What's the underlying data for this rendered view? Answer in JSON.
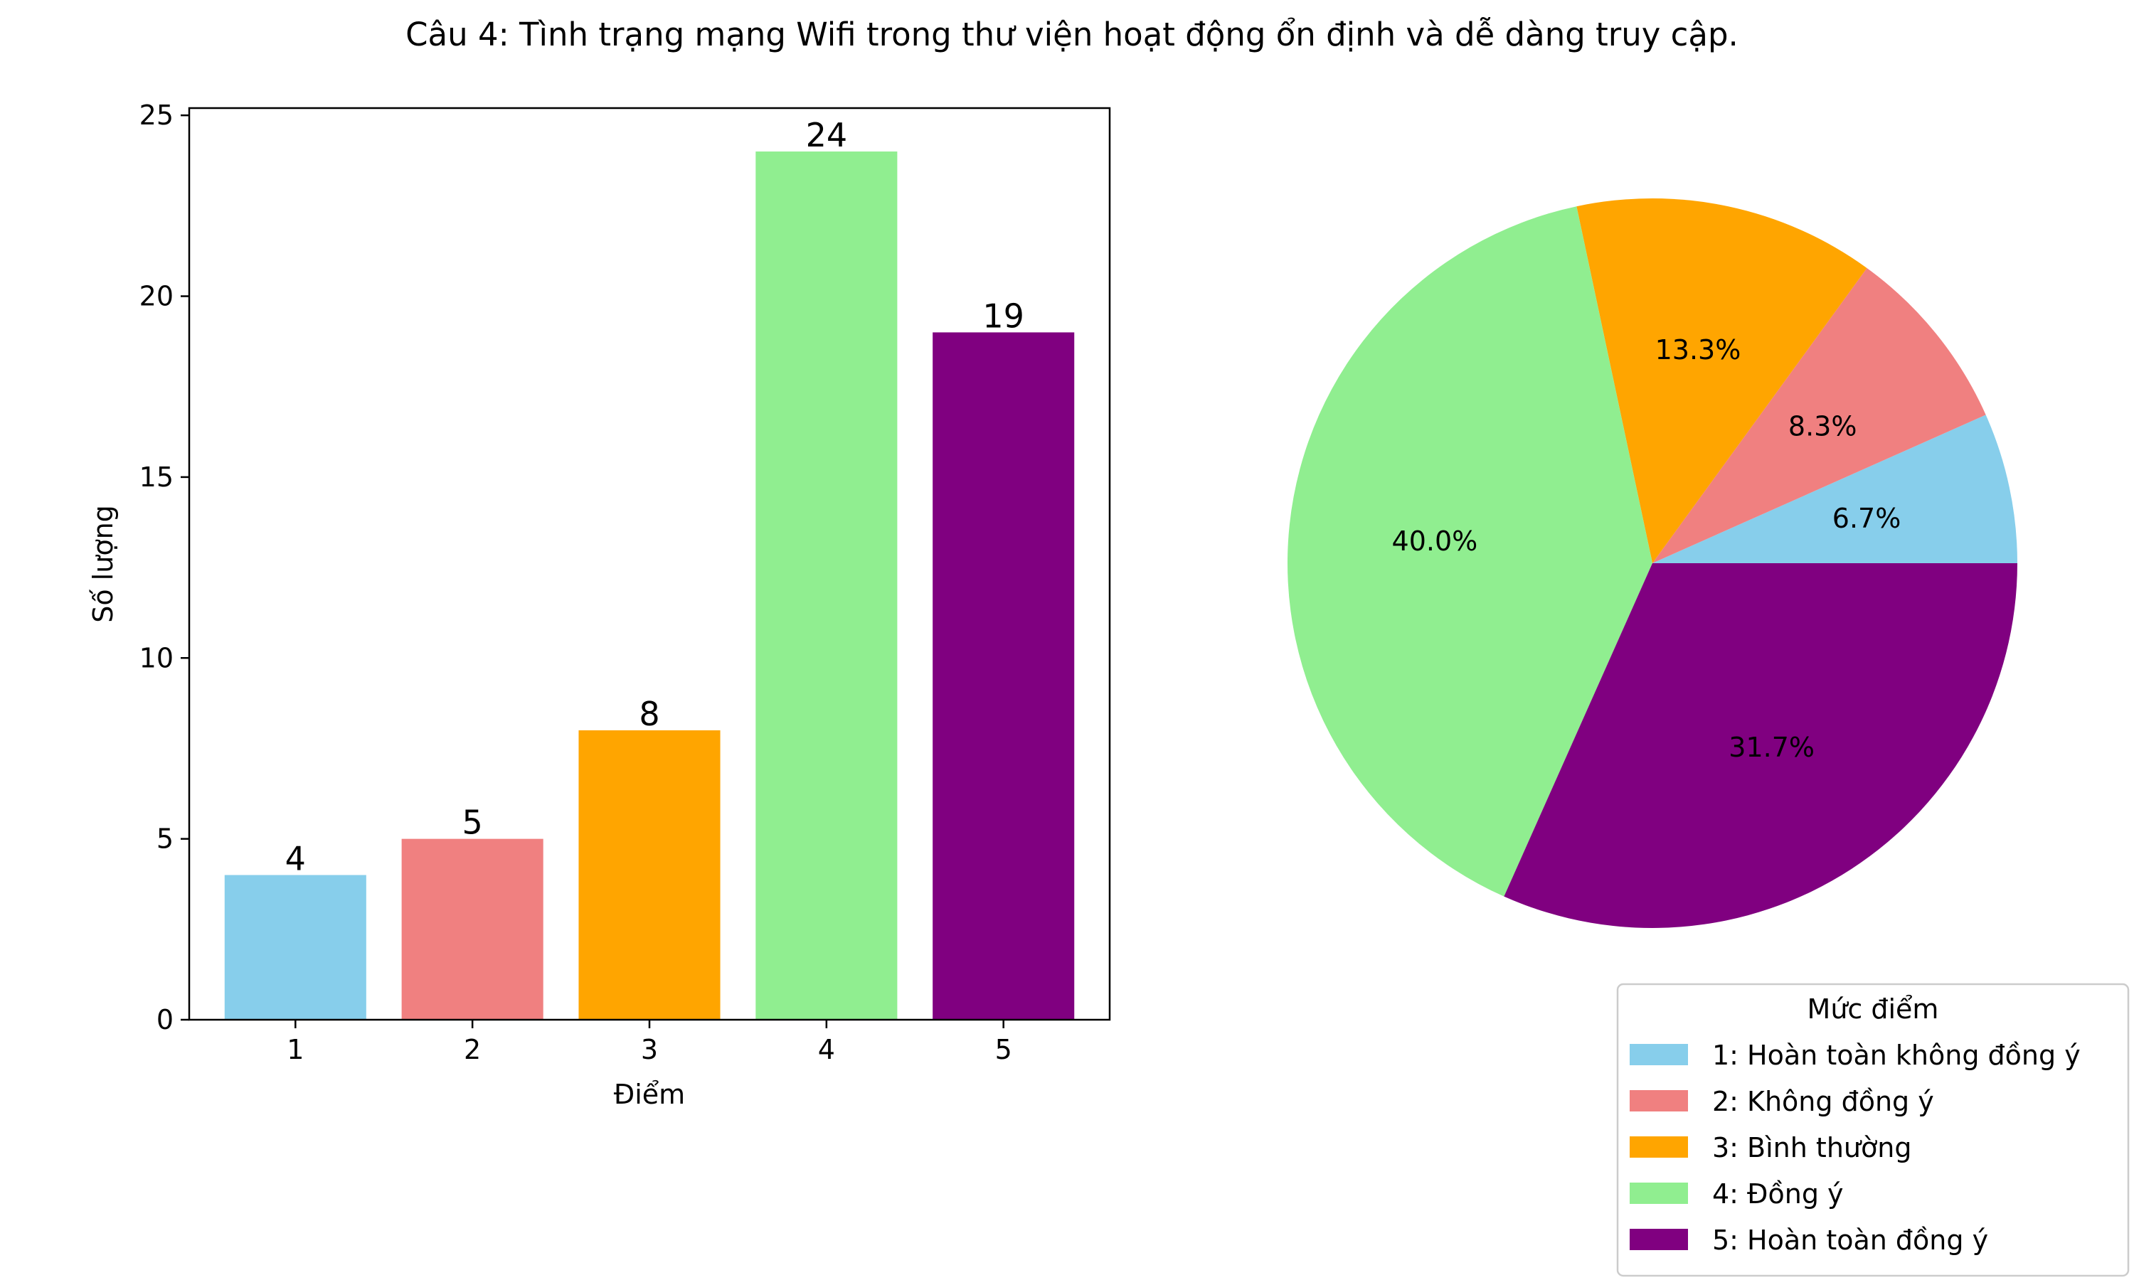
{
  "title": "Câu 4: Tình trạng mạng Wifi trong thư viện hoạt động ổn định và dễ dàng truy cập.",
  "colors": {
    "1": "#87CEEB",
    "2": "#F08080",
    "3": "#FFA500",
    "4": "#90EE90",
    "5": "#800080"
  },
  "chart_data": [
    {
      "type": "bar",
      "categories": [
        "1",
        "2",
        "3",
        "4",
        "5"
      ],
      "values": [
        4,
        5,
        8,
        24,
        19
      ],
      "data_labels": [
        "4",
        "5",
        "8",
        "24",
        "19"
      ],
      "xlabel": "Điểm",
      "ylabel": "Số lượng",
      "ylim": [
        0,
        25.2
      ],
      "yticks": [
        0,
        5,
        10,
        15,
        20,
        25
      ],
      "grid": false
    },
    {
      "type": "pie",
      "labels": [
        "1: Hoàn toàn không đồng ý",
        "2: Không đồng ý",
        "3: Bình thường",
        "4: Đồng ý",
        "5: Hoàn toàn đồng ý"
      ],
      "values": [
        4,
        5,
        8,
        24,
        19
      ],
      "percent_labels": [
        "6.7%",
        "8.3%",
        "13.3%",
        "40.0%",
        "31.7%"
      ],
      "legend": {
        "title": "Mức điểm",
        "placement": "bottom-right"
      }
    }
  ]
}
